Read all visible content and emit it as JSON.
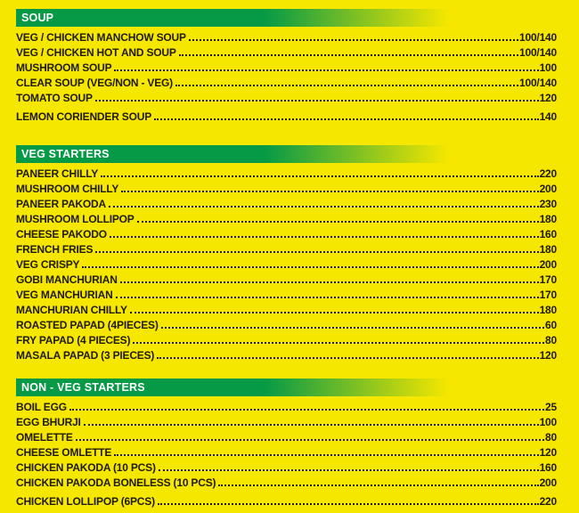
{
  "page": {
    "background_color": "#f6e700",
    "header_bar_color": "#069a46",
    "text_color": "#201b06",
    "header_text_color": "#ffffff"
  },
  "menu": {
    "sections": [
      {
        "title": "SOUP",
        "items": [
          {
            "name": "VEG / CHICKEN MANCHOW SOUP",
            "price": "100/140"
          },
          {
            "name": "VEG / CHICKEN HOT AND SOUP",
            "price": "100/140"
          },
          {
            "name": "MUSHROOM SOUP",
            "price": "100"
          },
          {
            "name": "CLEAR SOUP (VEG/NON - VEG)",
            "price": "100/140"
          },
          {
            "name": "TOMATO SOUP",
            "price": "120"
          },
          {
            "name": "LEMON CORIENDER SOUP",
            "price": "140"
          }
        ]
      },
      {
        "title": "VEG STARTERS",
        "items": [
          {
            "name": "PANEER CHILLY",
            "price": "220"
          },
          {
            "name": "MUSHROOM CHILLY",
            "price": "200"
          },
          {
            "name": "PANEER PAKODA",
            "price": "230"
          },
          {
            "name": "MUSHROOM LOLLIPOP",
            "price": "180"
          },
          {
            "name": "CHEESE PAKODO",
            "price": "160"
          },
          {
            "name": "FRENCH FRIES",
            "price": "180"
          },
          {
            "name": "VEG CRISPY",
            "price": "200"
          },
          {
            "name": "GOBI MANCHURIAN",
            "price": "170"
          },
          {
            "name": "VEG MANCHURIAN",
            "price": "170"
          },
          {
            "name": "MANCHURIAN CHILLY",
            "price": "180"
          },
          {
            "name": "ROASTED PAPAD (4PIECES)",
            "price": "60"
          },
          {
            "name": "FRY PAPAD (4 PIECES)",
            "price": "80"
          },
          {
            "name": "MASALA PAPAD (3 PIECES)",
            "price": "120"
          }
        ]
      },
      {
        "title": "NON - VEG STARTERS",
        "items": [
          {
            "name": "BOIL EGG",
            "price": "25"
          },
          {
            "name": "EGG BHURJI",
            "price": "100"
          },
          {
            "name": "OMELETTE",
            "price": "80"
          },
          {
            "name": "CHEESE OMLETTE",
            "price": "120"
          },
          {
            "name": "CHICKEN PAKODA (10 PCS)",
            "price": "160"
          },
          {
            "name": "CHICKEN PAKODA BONELESS (10 PCS)",
            "price": "200"
          },
          {
            "name": "CHICKEN LOLLIPOP (6PCS)",
            "price": "220"
          }
        ]
      }
    ]
  }
}
